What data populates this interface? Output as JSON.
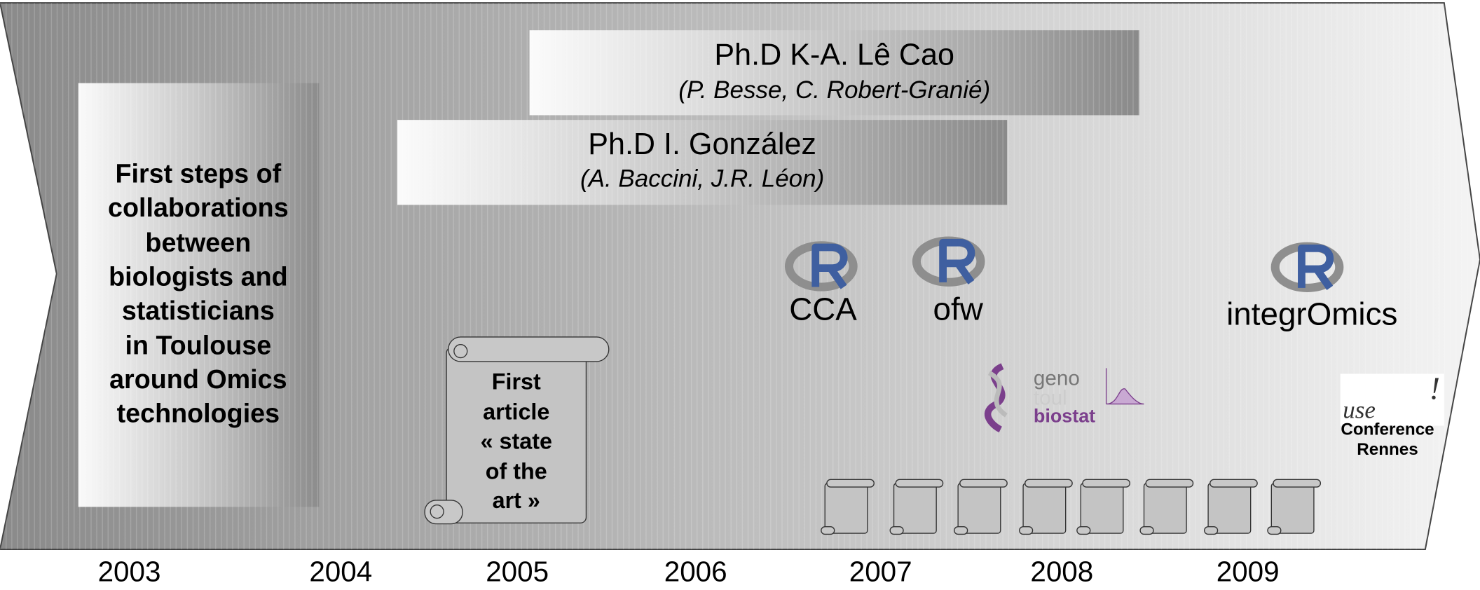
{
  "first_steps": {
    "lines": [
      "First steps of",
      "collaborations",
      "between",
      "biologists and",
      "statisticians",
      "in Toulouse",
      "around Omics",
      "technologies"
    ]
  },
  "phd_lecao": {
    "title": "Ph.D K-A. Lê Cao",
    "supervisors": "(P. Besse, C. Robert-Granié)"
  },
  "phd_gonzalez": {
    "title": "Ph.D I. González",
    "supervisors": "(A. Baccini, J.R. Léon)"
  },
  "first_article": {
    "lines": [
      "First",
      "article",
      "« state",
      "of the",
      "art »"
    ]
  },
  "packages": [
    "CCA",
    "ofw",
    "integrOmics"
  ],
  "genotoul_logo": {
    "line1": "geno",
    "line2": "toul",
    "line3": "biostat"
  },
  "user_conference": {
    "logo_prefix": "use",
    "logo_suffix": "!",
    "line1": "Conference",
    "line2": "Rennes"
  },
  "timeline": {
    "years": [
      "2003",
      "2004",
      "2005",
      "2006",
      "2007",
      "2008",
      "2009"
    ]
  }
}
